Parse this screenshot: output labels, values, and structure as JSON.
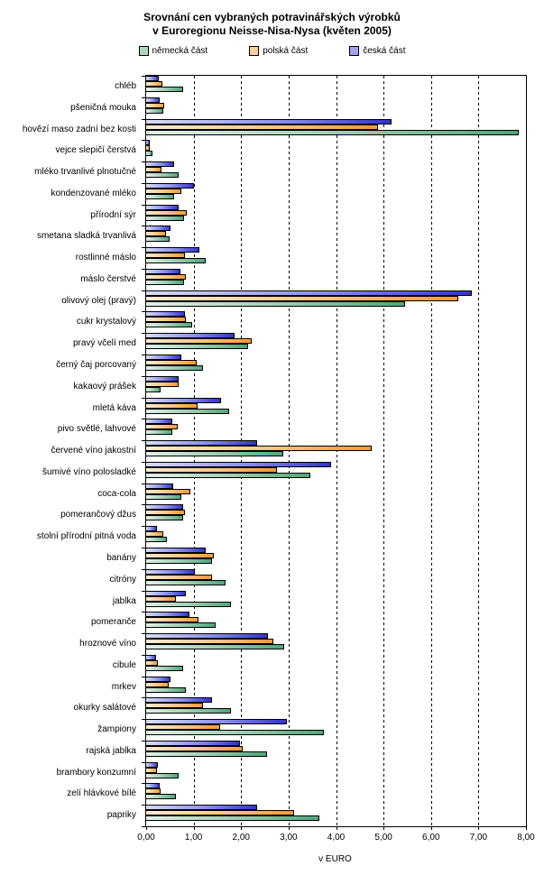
{
  "title_line1": "Srovnání cen vybraných potravinářských výrobků",
  "title_line2": "v Euroregionu Neisse-Nisa-Nysa (květen 2005)",
  "chart_data": {
    "type": "bar",
    "orientation": "horizontal",
    "title": "Srovnání cen vybraných potravinářských výrobků v Euroregionu Neisse-Nisa-Nysa (květen 2005)",
    "xlabel": "v EURO",
    "xlim": [
      0,
      8
    ],
    "x_ticks": [
      "0,00",
      "1,00",
      "2,00",
      "3,00",
      "4,00",
      "5,00",
      "6,00",
      "7,00",
      "8,00"
    ],
    "gridlines": "dashed vertical every 1.00",
    "legend_position": "top",
    "bar_order_top_to_bottom": [
      "česká část",
      "polská část",
      "německá část"
    ],
    "categories": [
      "chléb",
      "pšeničná mouka",
      "hovězí maso zadní bez kosti",
      "vejce slepičí čerstvá",
      "mléko trvanlivé plnotučné",
      "kondenzované mléko",
      "přírodní sýr",
      "smetana sladká trvanlivá",
      "rostlinné máslo",
      "máslo čerstvé",
      "olivový olej (pravý)",
      "cukr krystalový",
      "pravý včelí med",
      "černý čaj porcovaný",
      "kakaový prášek",
      "mletá káva",
      "pivo světlé, lahvové",
      "červené víno jakostní",
      "šumivé víno polosladké",
      "coca-cola",
      "pomerančový džus",
      "stolní přírodní pitná voda",
      "banány",
      "citróny",
      "jablka",
      "pomeranče",
      "hroznové víno",
      "cibule",
      "mrkev",
      "okurky salátové",
      "žampiony",
      "rajská jablka",
      "brambory konzumní",
      "zelí hlávkové bílé",
      "papriky"
    ],
    "series": [
      {
        "name": "německá část",
        "key": "nemecka-cast",
        "color_dark": "#4FA67B",
        "color_mid": "#9CCBAF",
        "color_light": "#E3F1E8",
        "legend_swatch": "#AFD6BC",
        "values": [
          0.78,
          0.36,
          7.85,
          0.13,
          0.68,
          0.58,
          0.79,
          0.5,
          1.25,
          0.79,
          5.45,
          0.96,
          2.14,
          1.19,
          0.31,
          1.74,
          0.55,
          2.88,
          3.46,
          0.75,
          0.77,
          0.44,
          1.39,
          1.68,
          1.79,
          1.46,
          2.9,
          0.77,
          0.84,
          1.79,
          3.74,
          2.54,
          0.68,
          0.63,
          3.65
        ]
      },
      {
        "name": "polská část",
        "key": "polska-cast",
        "color_dark": "#FF9933",
        "color_mid": "#FFC685",
        "color_light": "#FDEBD2",
        "legend_swatch": "#FBCF9E",
        "values": [
          0.35,
          0.38,
          4.88,
          0.08,
          0.33,
          0.74,
          0.86,
          0.42,
          0.81,
          0.84,
          6.57,
          0.84,
          2.23,
          1.06,
          0.69,
          1.09,
          0.66,
          4.75,
          2.75,
          0.93,
          0.82,
          0.36,
          1.42,
          1.39,
          0.62,
          1.1,
          2.67,
          0.24,
          0.47,
          1.2,
          1.55,
          2.04,
          0.22,
          0.3,
          3.11
        ]
      },
      {
        "name": "česká část",
        "key": "ceska-cast",
        "color_dark": "#3333CC",
        "color_mid": "#8A8FEE",
        "color_light": "#D9DCF8",
        "legend_swatch": "#9FA5EC",
        "values": [
          0.27,
          0.28,
          5.17,
          0.08,
          0.59,
          1.01,
          0.68,
          0.51,
          1.12,
          0.73,
          6.86,
          0.81,
          1.86,
          0.74,
          0.68,
          1.58,
          0.56,
          2.34,
          3.9,
          0.57,
          0.77,
          0.22,
          1.26,
          1.03,
          0.83,
          0.91,
          2.56,
          0.2,
          0.51,
          1.39,
          2.96,
          1.97,
          0.24,
          0.28,
          2.34
        ]
      }
    ]
  }
}
